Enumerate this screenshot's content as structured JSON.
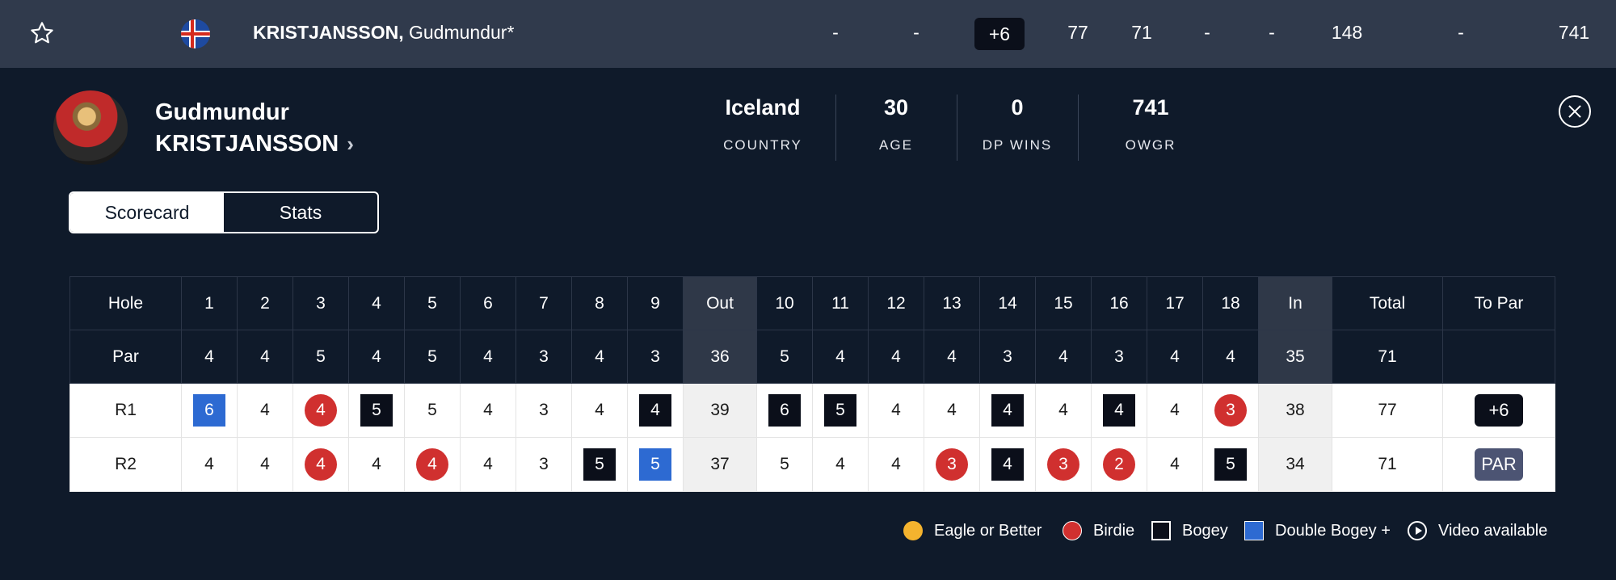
{
  "leaderboard_row": {
    "player_last": "KRISTJANSSON,",
    "player_first": "Gudmundur*",
    "cells": [
      "-",
      "-",
      "+6",
      "77",
      "71",
      "-",
      "-",
      "148",
      "-",
      "741"
    ]
  },
  "profile": {
    "first_name": "Gudmundur",
    "last_name": "KRISTJANSSON",
    "stats": [
      {
        "value": "Iceland",
        "label": "COUNTRY"
      },
      {
        "value": "30",
        "label": "AGE"
      },
      {
        "value": "0",
        "label": "DP WINS"
      },
      {
        "value": "741",
        "label": "OWGR"
      }
    ]
  },
  "tabs": [
    "Scorecard",
    "Stats"
  ],
  "scorecard": {
    "hole_label": "Hole",
    "par_label": "Par",
    "holes": [
      "1",
      "2",
      "3",
      "4",
      "5",
      "6",
      "7",
      "8",
      "9",
      "Out",
      "10",
      "11",
      "12",
      "13",
      "14",
      "15",
      "16",
      "17",
      "18",
      "In",
      "Total",
      "To Par"
    ],
    "par": [
      "4",
      "4",
      "5",
      "4",
      "5",
      "4",
      "3",
      "4",
      "3",
      "36",
      "5",
      "4",
      "4",
      "4",
      "3",
      "4",
      "3",
      "4",
      "4",
      "35",
      "71",
      ""
    ],
    "rounds": [
      {
        "label": "R1",
        "scores": [
          "6",
          "4",
          "4",
          "5",
          "5",
          "4",
          "3",
          "4",
          "4",
          "39",
          "6",
          "5",
          "4",
          "4",
          "4",
          "4",
          "4",
          "4",
          "3",
          "38",
          "77",
          "+6"
        ],
        "marks": [
          "dbl",
          "",
          "birdie",
          "bogey",
          "",
          "",
          "",
          "",
          "bogey",
          "",
          "bogey",
          "bogey",
          "",
          "",
          "bogey",
          "",
          "bogey",
          "",
          "birdie",
          "",
          "",
          "over"
        ]
      },
      {
        "label": "R2",
        "scores": [
          "4",
          "4",
          "4",
          "4",
          "4",
          "4",
          "3",
          "5",
          "5",
          "37",
          "5",
          "4",
          "4",
          "3",
          "4",
          "3",
          "2",
          "4",
          "5",
          "34",
          "71",
          "PAR"
        ],
        "marks": [
          "",
          "",
          "birdie",
          "",
          "birdie",
          "",
          "",
          "bogey",
          "dbl",
          "",
          "",
          "",
          "",
          "birdie",
          "bogey",
          "birdie",
          "birdie",
          "",
          "bogey",
          "",
          "",
          "par"
        ]
      }
    ]
  },
  "legend": [
    "Eagle or Better",
    "Birdie",
    "Bogey",
    "Double Bogey +",
    "Video available"
  ],
  "colors": {
    "background": "#0f1a2a",
    "top_row": "#303a4c",
    "birdie": "#d0302f",
    "eagle": "#f4b32e",
    "double_bogey": "#2d6ad2",
    "bogey": "#0b0f1a"
  }
}
